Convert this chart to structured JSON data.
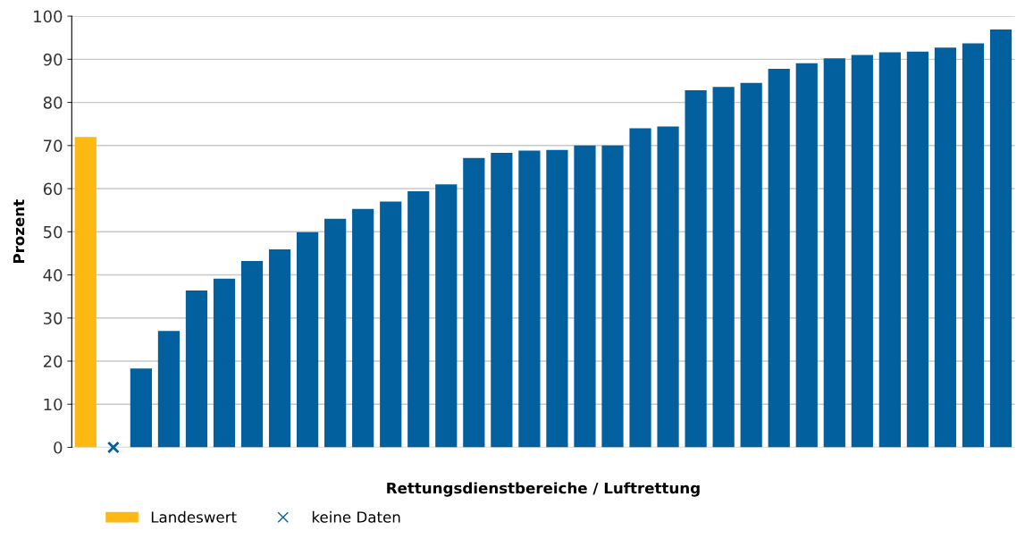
{
  "chart_data": {
    "type": "bar",
    "xlabel": "Rettungsdienstbereiche / Luftrettung",
    "ylabel": "Prozent",
    "categories": [
      null,
      null,
      null,
      null,
      null,
      null,
      null,
      null,
      null,
      null,
      null,
      null,
      null,
      null,
      null,
      null,
      null,
      null,
      null,
      null,
      null,
      null,
      null,
      null,
      null,
      null,
      null,
      null,
      null,
      null,
      null,
      null,
      null,
      null
    ],
    "series": [
      {
        "name": "Landeswert",
        "color": "#fdb813",
        "values": [
          72,
          null,
          null,
          null,
          null,
          null,
          null,
          null,
          null,
          null,
          null,
          null,
          null,
          null,
          null,
          null,
          null,
          null,
          null,
          null,
          null,
          null,
          null,
          null,
          null,
          null,
          null,
          null,
          null,
          null,
          null,
          null,
          null,
          null
        ]
      },
      {
        "color": "#02609e",
        "values": [
          null,
          null,
          18.3,
          27,
          36.4,
          39.1,
          43.2,
          45.9,
          49.9,
          53,
          55.3,
          57,
          59.4,
          61,
          67.1,
          68.3,
          68.8,
          69,
          70,
          70,
          74,
          74.4,
          82.8,
          83.6,
          84.5,
          87.8,
          89.1,
          90.2,
          91,
          91.6,
          91.8,
          92.7,
          93.7,
          96.9
        ]
      },
      {
        "name": "keine Daten",
        "type": "scatter",
        "marker": "cross",
        "color": "#02609e",
        "values": [
          null,
          0,
          null,
          null,
          null,
          null,
          null,
          null,
          null,
          null,
          null,
          null,
          null,
          null,
          null,
          null,
          null,
          null,
          null,
          null,
          null,
          null,
          null,
          null,
          null,
          null,
          null,
          null,
          null,
          null,
          null,
          null,
          null,
          null
        ]
      }
    ],
    "ylim": [
      0,
      100
    ],
    "yticks": [
      0,
      10,
      20,
      30,
      40,
      50,
      60,
      70,
      80,
      90,
      100
    ],
    "grid": "y",
    "legend": "bottom left",
    "tick_labels": "y"
  }
}
